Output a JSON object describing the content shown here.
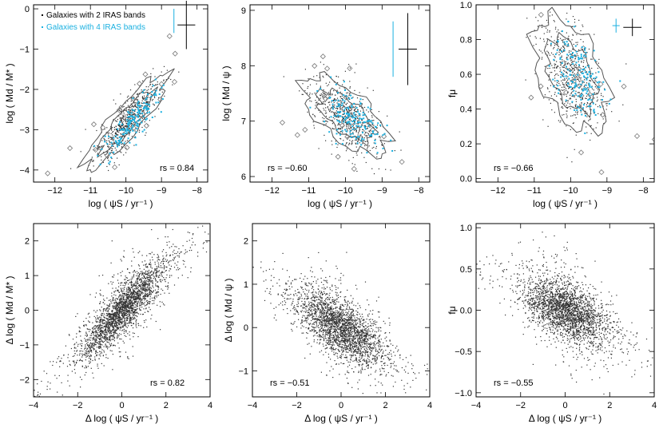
{
  "chart_data": [
    {
      "id": "p1",
      "type": "scatter",
      "xlabel": "log ( ψS / yr⁻¹ )",
      "ylabel": "log ( Md / M* )",
      "xlim": [
        -12.6,
        -7.7
      ],
      "ylim": [
        -4.3,
        0.1
      ],
      "xticks": [
        -12,
        -11,
        -10,
        -9,
        -8
      ],
      "yticks": [
        -4,
        -3,
        -2,
        -1,
        0
      ],
      "rs": "rs = 0.84",
      "legend": [
        "Galaxies with 2 IRAS bands",
        "Galaxies with 4 IRAS bands"
      ],
      "trend": {
        "x0": -10.0,
        "y0": -2.8,
        "slope": 0.9,
        "xspread": 0.45,
        "yspread": 0.22
      },
      "errorbars": [
        {
          "x": -8.3,
          "y": -0.4,
          "dy": 0.6,
          "dx": 0.25,
          "series": "2 IRAS"
        },
        {
          "x": -8.65,
          "y": -0.3,
          "dy": 0.3,
          "dx": 0.0,
          "series": "4 IRAS"
        }
      ]
    },
    {
      "id": "p2",
      "type": "scatter",
      "xlabel": "log ( ψS / yr⁻¹ )",
      "ylabel": "log ( Md / ψ )",
      "xlim": [
        -12.6,
        -7.7
      ],
      "ylim": [
        5.9,
        9.1
      ],
      "xticks": [
        -12,
        -11,
        -10,
        -9,
        -8
      ],
      "yticks": [
        6,
        7,
        8,
        9
      ],
      "rs": "rs = −0.60",
      "trend": {
        "x0": -10.0,
        "y0": 7.1,
        "slope": -0.4,
        "xspread": 0.45,
        "yspread": 0.22
      },
      "errorbars": [
        {
          "x": -8.3,
          "y": 8.3,
          "dy": 0.65,
          "dx": 0.25,
          "series": "2 IRAS"
        },
        {
          "x": -8.7,
          "y": 8.3,
          "dy": 0.5,
          "dx": 0.0,
          "series": "4 IRAS"
        }
      ]
    },
    {
      "id": "p3",
      "type": "scatter",
      "xlabel": "log ( ψS / yr⁻¹ )",
      "ylabel": "fμ",
      "xlim": [
        -12.6,
        -7.7
      ],
      "ylim": [
        -0.02,
        1.0
      ],
      "xticks": [
        -12,
        -11,
        -10,
        -9,
        -8
      ],
      "yticks": [
        0.0,
        0.2,
        0.4,
        0.6,
        0.8,
        1.0
      ],
      "rs": "rs = −0.66",
      "trend": {
        "x0": -10.0,
        "y0": 0.6,
        "slope": -0.15,
        "xspread": 0.4,
        "yspread": 0.12
      },
      "errorbars": [
        {
          "x": -8.3,
          "y": 0.87,
          "dy": 0.05,
          "dx": 0.25,
          "series": "2 IRAS"
        },
        {
          "x": -8.75,
          "y": 0.88,
          "dy": 0.04,
          "dx": 0.1,
          "series": "4 IRAS"
        }
      ]
    },
    {
      "id": "p4",
      "type": "scatter",
      "xlabel": "Δ log ( ψS / yr⁻¹ )",
      "ylabel": "Δ log ( Md / M* )",
      "xlim": [
        -4,
        4
      ],
      "ylim": [
        -2.5,
        2.5
      ],
      "xticks": [
        -4,
        -2,
        0,
        2,
        4
      ],
      "yticks": [
        -2,
        -1,
        0,
        1,
        2
      ],
      "rs": "rs = 0.82",
      "trend": {
        "x0": 0,
        "y0": 0,
        "slope": 0.62,
        "xspread": 0.9,
        "yspread": 0.32
      }
    },
    {
      "id": "p5",
      "type": "scatter",
      "xlabel": "Δ log ( ψS / yr⁻¹ )",
      "ylabel": "Δ log ( Md / ψ )",
      "xlim": [
        -4,
        4
      ],
      "ylim": [
        -1.6,
        2.4
      ],
      "xticks": [
        -4,
        -2,
        0,
        2,
        4
      ],
      "yticks": [
        -1,
        0,
        1,
        2
      ],
      "rs": "rs = −0.51",
      "trend": {
        "x0": 0,
        "y0": 0,
        "slope": -0.3,
        "xspread": 0.9,
        "yspread": 0.3
      }
    },
    {
      "id": "p6",
      "type": "scatter",
      "xlabel": "Δ log ( ψS / yr⁻¹ )",
      "ylabel": "fμ",
      "xlim": [
        -4,
        4
      ],
      "ylim": [
        -1.05,
        1.05
      ],
      "xticks": [
        -4,
        -2,
        0,
        2,
        4
      ],
      "yticks": [
        -1.0,
        -0.5,
        0.0,
        0.5,
        1.0
      ],
      "rs": "rs = −0.55",
      "trend": {
        "x0": 0,
        "y0": 0,
        "slope": -0.12,
        "xspread": 0.9,
        "yspread": 0.16
      }
    }
  ],
  "colors": {
    "series_2iras": "#000000",
    "series_4iras": "#1ab0e0",
    "contour": "#555555",
    "density": "#333333"
  }
}
